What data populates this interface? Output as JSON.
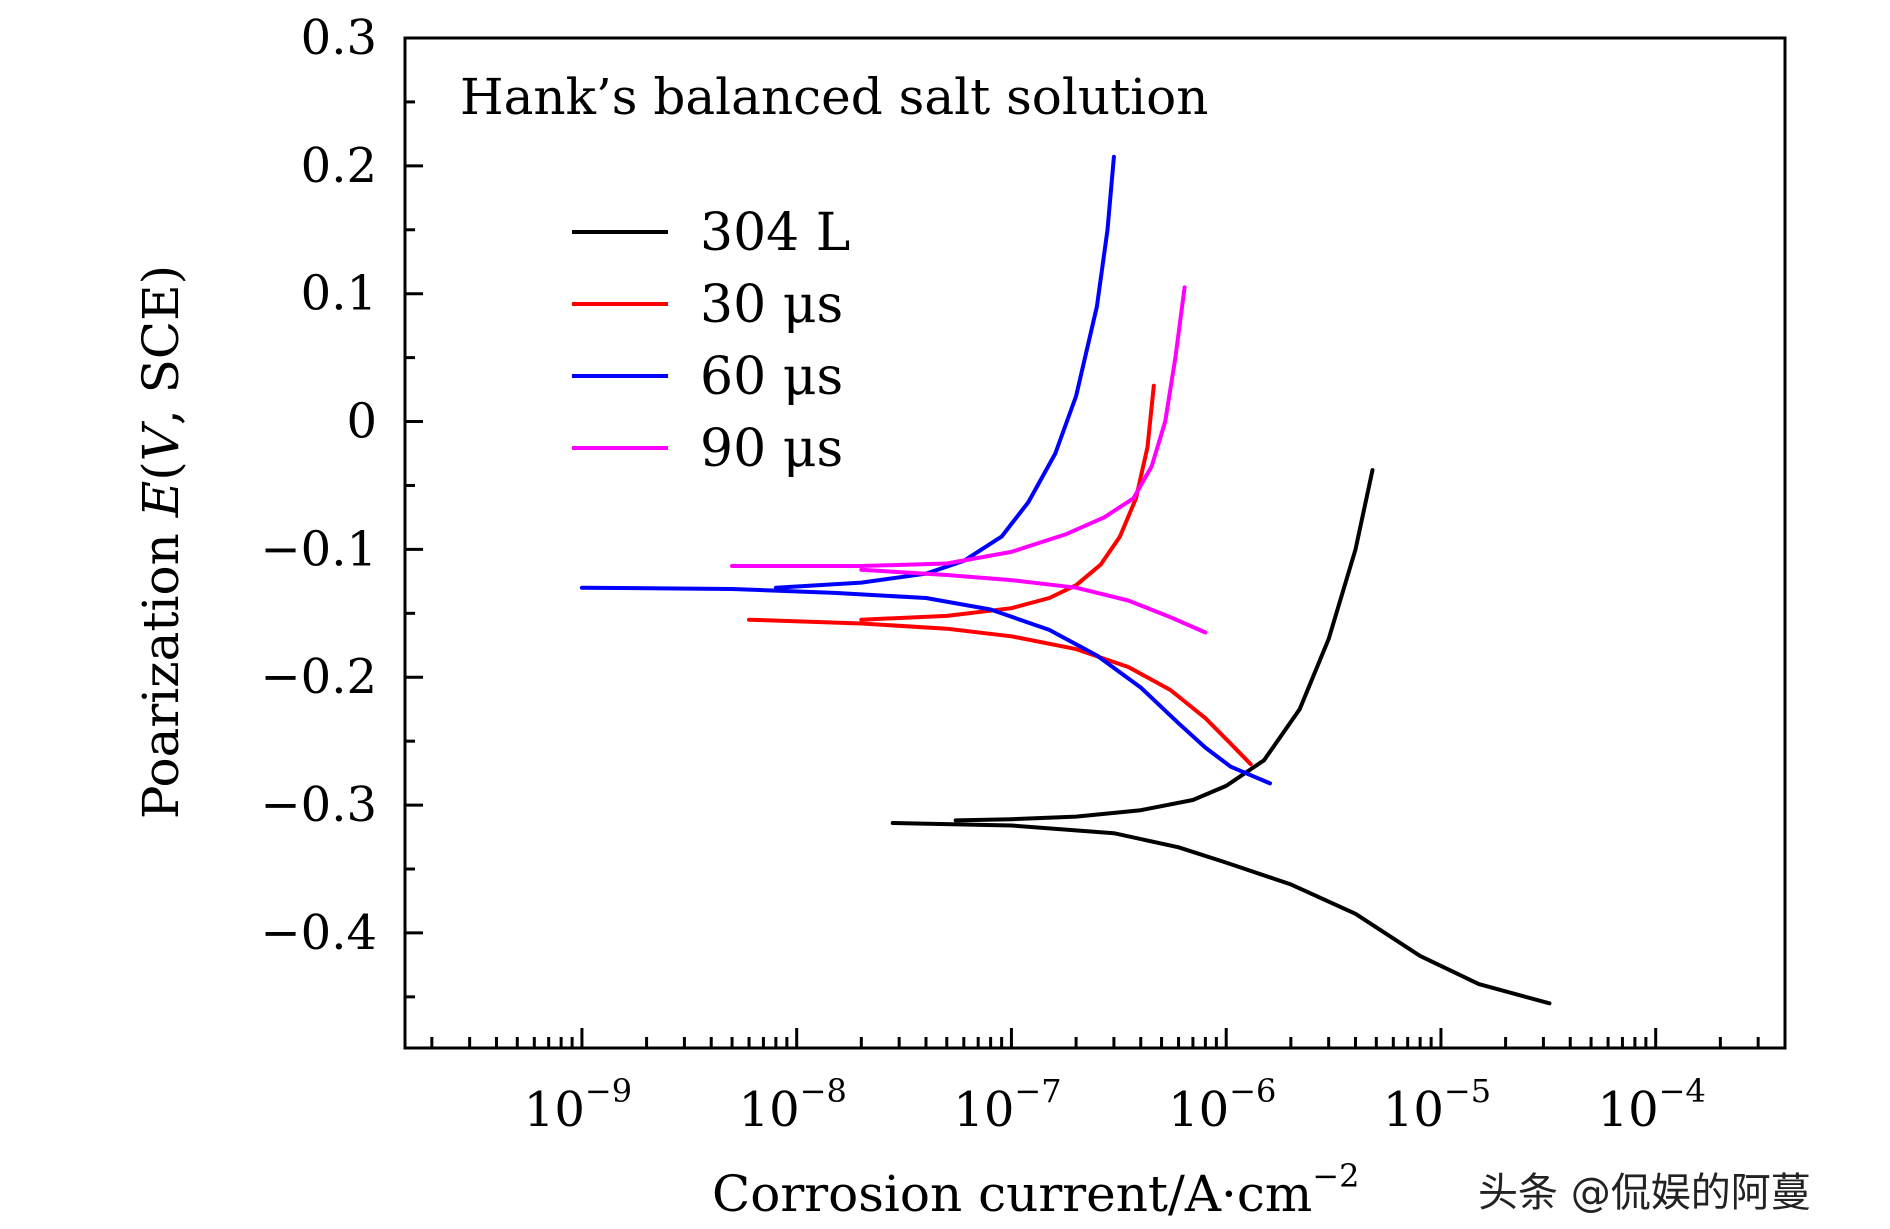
{
  "chart_data": {
    "type": "line",
    "annotation": "Hank’s balanced salt solution",
    "xlabel": "Corrosion current/A·cm",
    "xlabel_exponent": "−2",
    "ylabel_prefix": "Poarization ",
    "ylabel_italic": "E",
    "ylabel_open": "(",
    "ylabel_unit_italic": "V",
    "ylabel_suffix": ", SCE)",
    "x_scale": "log",
    "xlim": [
      1.5e-10,
      0.0004
    ],
    "ylim": [
      -0.49,
      0.3
    ],
    "y_ticks": [
      {
        "value": 0.3,
        "label": "0.3"
      },
      {
        "value": 0.2,
        "label": "0.2"
      },
      {
        "value": 0.1,
        "label": "0.1"
      },
      {
        "value": 0.0,
        "label": "0"
      },
      {
        "value": -0.1,
        "label": "−0.1"
      },
      {
        "value": -0.2,
        "label": "−0.2"
      },
      {
        "value": -0.3,
        "label": "−0.3"
      },
      {
        "value": -0.4,
        "label": "−0.4"
      }
    ],
    "x_ticks": [
      {
        "value": 1e-09,
        "base": "10",
        "exp": "−9"
      },
      {
        "value": 1e-08,
        "base": "10",
        "exp": "−8"
      },
      {
        "value": 1e-07,
        "base": "10",
        "exp": "−7"
      },
      {
        "value": 1e-06,
        "base": "10",
        "exp": "−6"
      },
      {
        "value": 1e-05,
        "base": "10",
        "exp": "−5"
      },
      {
        "value": 0.0001,
        "base": "10",
        "exp": "−4"
      }
    ],
    "legend_position": "upper-left",
    "series": [
      {
        "name": "304 L",
        "color": "#000000",
        "anodic": [
          [
            5.5e-08,
            -0.312
          ],
          [
            1e-07,
            -0.311
          ],
          [
            2e-07,
            -0.309
          ],
          [
            4e-07,
            -0.304
          ],
          [
            7e-07,
            -0.296
          ],
          [
            1e-06,
            -0.285
          ],
          [
            1.5e-06,
            -0.265
          ],
          [
            2.2e-06,
            -0.225
          ],
          [
            3e-06,
            -0.17
          ],
          [
            4e-06,
            -0.1
          ],
          [
            4.8e-06,
            -0.038
          ]
        ],
        "cathodic": [
          [
            2.8e-08,
            -0.314
          ],
          [
            1e-07,
            -0.316
          ],
          [
            3e-07,
            -0.322
          ],
          [
            6e-07,
            -0.333
          ],
          [
            1e-06,
            -0.345
          ],
          [
            2e-06,
            -0.362
          ],
          [
            4e-06,
            -0.385
          ],
          [
            8e-06,
            -0.418
          ],
          [
            1.5e-05,
            -0.44
          ],
          [
            3.2e-05,
            -0.455
          ]
        ]
      },
      {
        "name": "30 μs",
        "color": "#ff0000",
        "anodic": [
          [
            2e-08,
            -0.155
          ],
          [
            5e-08,
            -0.152
          ],
          [
            1e-07,
            -0.146
          ],
          [
            1.5e-07,
            -0.138
          ],
          [
            2e-07,
            -0.128
          ],
          [
            2.6e-07,
            -0.112
          ],
          [
            3.2e-07,
            -0.09
          ],
          [
            3.8e-07,
            -0.06
          ],
          [
            4.3e-07,
            -0.02
          ],
          [
            4.6e-07,
            0.028
          ]
        ],
        "cathodic": [
          [
            6e-09,
            -0.155
          ],
          [
            2e-08,
            -0.158
          ],
          [
            5e-08,
            -0.162
          ],
          [
            1e-07,
            -0.168
          ],
          [
            2e-07,
            -0.178
          ],
          [
            3.5e-07,
            -0.192
          ],
          [
            5.5e-07,
            -0.21
          ],
          [
            8e-07,
            -0.232
          ],
          [
            1.05e-06,
            -0.252
          ],
          [
            1.3e-06,
            -0.268
          ]
        ]
      },
      {
        "name": "60 μs",
        "color": "#0000ff",
        "anodic": [
          [
            8e-09,
            -0.13
          ],
          [
            2e-08,
            -0.126
          ],
          [
            4e-08,
            -0.119
          ],
          [
            6e-08,
            -0.109
          ],
          [
            9e-08,
            -0.09
          ],
          [
            1.2e-07,
            -0.063
          ],
          [
            1.6e-07,
            -0.025
          ],
          [
            2e-07,
            0.02
          ],
          [
            2.5e-07,
            0.09
          ],
          [
            2.8e-07,
            0.15
          ],
          [
            3e-07,
            0.207
          ]
        ],
        "cathodic": [
          [
            1e-09,
            -0.13
          ],
          [
            5e-09,
            -0.131
          ],
          [
            1.5e-08,
            -0.134
          ],
          [
            4e-08,
            -0.138
          ],
          [
            8e-08,
            -0.147
          ],
          [
            1.5e-07,
            -0.163
          ],
          [
            2.5e-07,
            -0.183
          ],
          [
            4e-07,
            -0.208
          ],
          [
            6e-07,
            -0.236
          ],
          [
            8e-07,
            -0.255
          ],
          [
            1.05e-06,
            -0.27
          ],
          [
            1.6e-06,
            -0.283
          ]
        ]
      },
      {
        "name": "90 μs",
        "color": "#ff00ff",
        "anodic": [
          [
            5e-09,
            -0.113
          ],
          [
            2e-08,
            -0.113
          ],
          [
            5e-08,
            -0.111
          ],
          [
            1e-07,
            -0.102
          ],
          [
            1.8e-07,
            -0.088
          ],
          [
            2.7e-07,
            -0.075
          ],
          [
            3.7e-07,
            -0.06
          ],
          [
            4.5e-07,
            -0.035
          ],
          [
            5.2e-07,
            0.0
          ],
          [
            5.8e-07,
            0.05
          ],
          [
            6.4e-07,
            0.105
          ]
        ],
        "cathodic": [
          [
            2e-08,
            -0.116
          ],
          [
            5e-08,
            -0.12
          ],
          [
            1e-07,
            -0.124
          ],
          [
            2e-07,
            -0.13
          ],
          [
            3.5e-07,
            -0.14
          ],
          [
            5.5e-07,
            -0.153
          ],
          [
            8e-07,
            -0.165
          ]
        ]
      }
    ]
  },
  "watermark": {
    "text": "头条 @侃娱的阿蔓"
  }
}
